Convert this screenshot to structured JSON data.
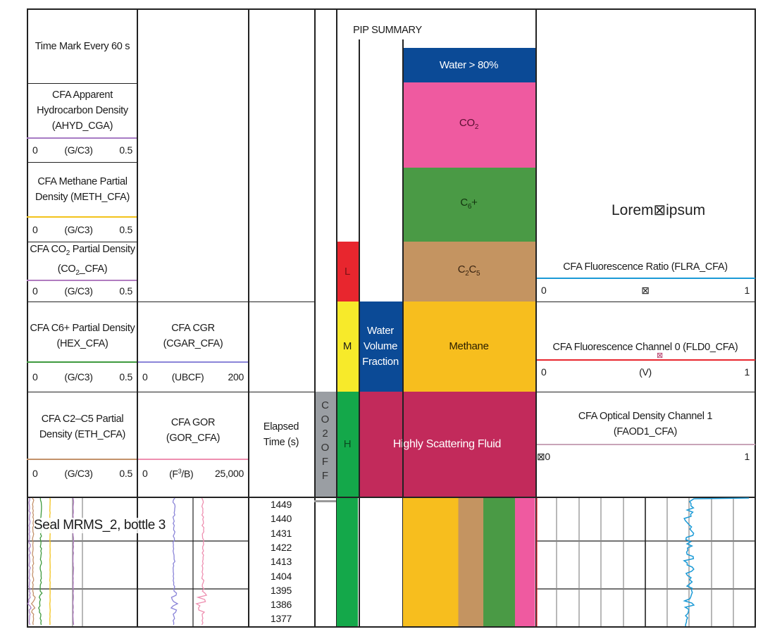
{
  "header": {
    "time_mark": "Time Mark Every  60 s",
    "pip_summary": "PIP SUMMARY",
    "elapsed_time": "Elapsed Time (s)",
    "co2_off": "CO2OFF",
    "annotation": "Lorem⊠ipsum",
    "seal_label": "Seal MRMS_2, bottle 3"
  },
  "tracks_left": [
    {
      "title": "CFA Apparent Hydrocarbon Density (AHYD_CGA)",
      "min": "0",
      "unit": "(G/C3)",
      "max": "0.5",
      "color": "#a77bc4"
    },
    {
      "title": "CFA Methane Partial Density (METH_CFA)",
      "min": "0",
      "unit": "(G/C3)",
      "max": "0.5",
      "color": "#f2c21b"
    },
    {
      "title_a": "CFA CO",
      "title_sub": "2",
      "title_b": " Partial Density (CO",
      "title_sub2": "2",
      "title_c": "_CFA)",
      "min": "0",
      "unit": "(G/C3)",
      "max": "0.5",
      "color": "#b07cc0"
    },
    {
      "title": "CFA C6+ Partial Density (HEX_CFA)",
      "min": "0",
      "unit": "(G/C3)",
      "max": "0.5",
      "color": "#3e9a3e"
    },
    {
      "title": "CFA C2–C5 Partial Density (ETH_CFA)",
      "min": "0",
      "unit": "(G/C3)",
      "max": "0.5",
      "color": "#c3916a"
    }
  ],
  "tracks_mid": [
    {
      "title": "CFA CGR (CGAR_CFA)",
      "min": "0",
      "unit": "(UBCF)",
      "max": "200",
      "color": "#8a84d8"
    },
    {
      "title": "CFA GOR (GOR_CFA)",
      "min": "0",
      "unit_a": "(F",
      "unit_sup": "3",
      "unit_b": "/B)",
      "max": "25,000",
      "color": "#ee8fb0"
    }
  ],
  "fluid_legend": {
    "water80": {
      "label": "Water > 80%",
      "color": "#0b4a96"
    },
    "co2": {
      "label": "CO",
      "sub": "2",
      "color": "#ef5aa0"
    },
    "c6": {
      "label": "C",
      "sub": "6",
      "suffix": "+",
      "color": "#4a9a45"
    },
    "c2c5": {
      "label_a": "C",
      "sub_a": "2",
      "label_b": "C",
      "sub_b": "5",
      "color": "#c49461"
    },
    "methane": {
      "label": "Methane",
      "color": "#f7be1e"
    },
    "water_vol": {
      "label": "Water Volume Fraction",
      "color": "#0b4a96"
    },
    "scattering": {
      "label": "Highly Scattering Fluid",
      "color": "#c22a5b"
    },
    "L": {
      "label": "L",
      "color": "#e8262e"
    },
    "M": {
      "label": "M",
      "color": "#f7ea2a"
    },
    "H": {
      "label": "H",
      "color": "#14a84a"
    },
    "co2off_color": "#9a9ea3"
  },
  "tracks_right": [
    {
      "title": "CFA Fluorescence Ratio (FLRA_CFA)",
      "min": "0",
      "unit": "⊠",
      "max": "1",
      "color": "#1b9ad6"
    },
    {
      "title": "CFA Fluorescence Channel 0 (FLD0_CFA)",
      "marker": "⊠",
      "min": "0",
      "unit": "(V)",
      "max": "1",
      "color": "#e8262e"
    },
    {
      "title": "CFA Optical Density Channel 1 (FAOD1_CFA)",
      "min": "⊠0",
      "unit": "",
      "max": "1",
      "color": "#c9a4b8"
    }
  ],
  "chart_data": {
    "type": "line",
    "ylabel": "Elapsed Time (s)",
    "y_ticks": [
      "1449",
      "1440",
      "1431",
      "1422",
      "1413",
      "1404",
      "1395",
      "1386",
      "1377"
    ],
    "ylim": [
      1377,
      1449
    ],
    "fluid_fraction_log": {
      "methane": 0.42,
      "c2c5": 0.19,
      "c6": 0.24,
      "co2": 0.15
    },
    "flra_cfa_approx": 0.69,
    "grid": true
  }
}
